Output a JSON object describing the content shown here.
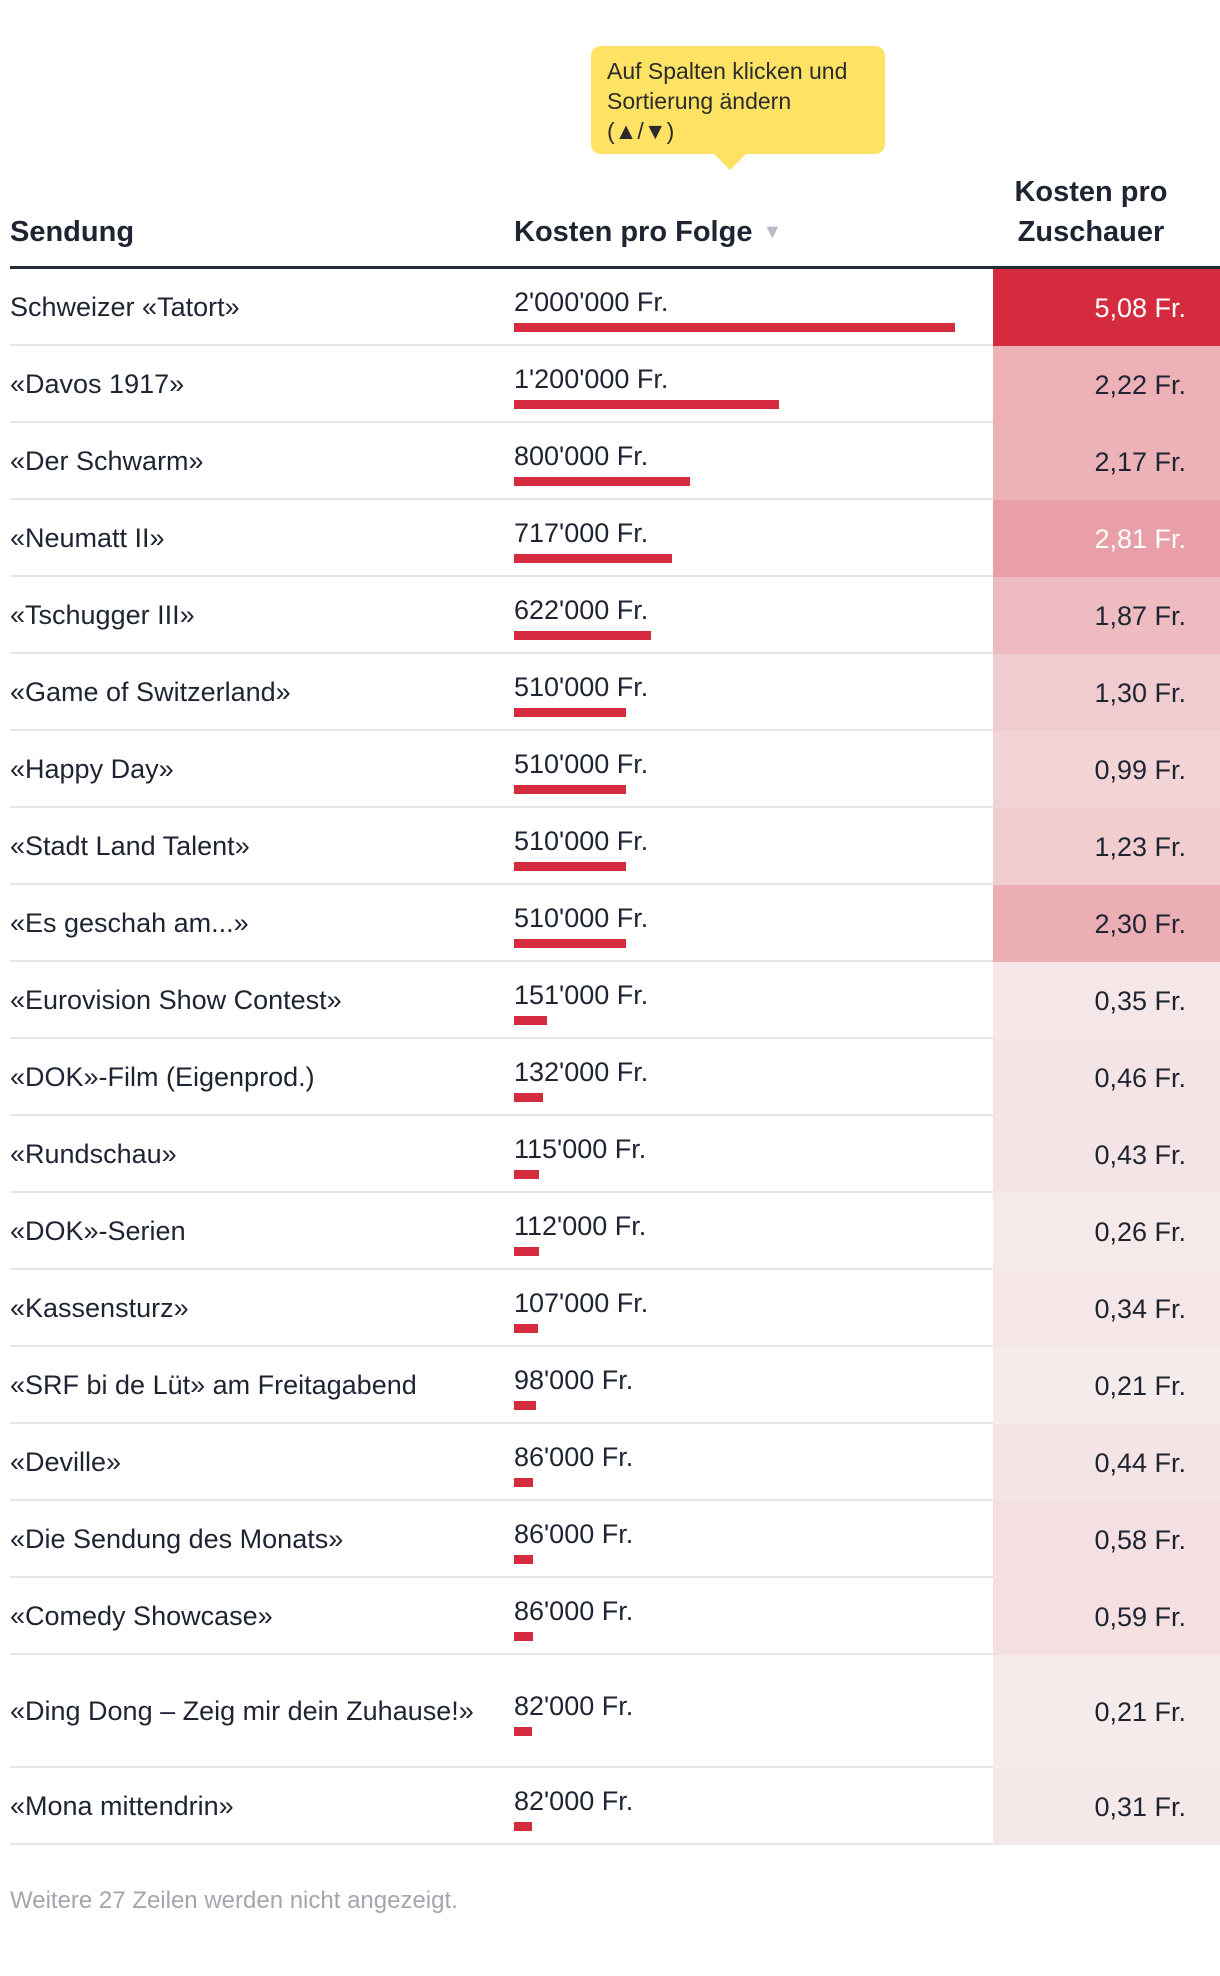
{
  "tooltip": {
    "line1": "Auf Spalten klicken und",
    "line2": "Sortierung ändern",
    "line3": "(▲/▼)"
  },
  "headers": {
    "col1": "Sendung",
    "col2": "Kosten pro Folge",
    "col2_sort_icon": "▼",
    "col3_line1": "Kosten pro",
    "col3_line2": "Zuschauer"
  },
  "footnote": "Weitere 27 Zeilen werden nicht angezeigt.",
  "colors": {
    "bar": "#d42c3e",
    "heat_high": "#d42c3e",
    "heat_low": "#f7f1f1",
    "text_dark": "#1f2433",
    "tooltip": "#fde264"
  },
  "chart_data": {
    "type": "table",
    "columns": [
      "Sendung",
      "Kosten pro Folge",
      "Kosten pro Zuschauer"
    ],
    "sorted_by": "Kosten pro Folge",
    "sort_direction": "descending",
    "rows": [
      {
        "name": "Schweizer «Tatort»",
        "cost": 2000000,
        "cost_label": "2'000'000 Fr.",
        "per_viewer": 5.08,
        "per_viewer_label": "5,08 Fr."
      },
      {
        "name": "«Davos 1917»",
        "cost": 1200000,
        "cost_label": "1'200'000 Fr.",
        "per_viewer": 2.22,
        "per_viewer_label": "2,22 Fr."
      },
      {
        "name": "«Der Schwarm»",
        "cost": 800000,
        "cost_label": "800'000 Fr.",
        "per_viewer": 2.17,
        "per_viewer_label": "2,17 Fr."
      },
      {
        "name": "«Neumatt II»",
        "cost": 717000,
        "cost_label": "717'000 Fr.",
        "per_viewer": 2.81,
        "per_viewer_label": "2,81 Fr."
      },
      {
        "name": "«Tschugger III»",
        "cost": 622000,
        "cost_label": "622'000 Fr.",
        "per_viewer": 1.87,
        "per_viewer_label": "1,87 Fr."
      },
      {
        "name": "«Game of Switzerland»",
        "cost": 510000,
        "cost_label": "510'000 Fr.",
        "per_viewer": 1.3,
        "per_viewer_label": "1,30 Fr."
      },
      {
        "name": "«Happy Day»",
        "cost": 510000,
        "cost_label": "510'000 Fr.",
        "per_viewer": 0.99,
        "per_viewer_label": "0,99 Fr."
      },
      {
        "name": "«Stadt Land Talent»",
        "cost": 510000,
        "cost_label": "510'000 Fr.",
        "per_viewer": 1.23,
        "per_viewer_label": "1,23 Fr."
      },
      {
        "name": "«Es geschah am...»",
        "cost": 510000,
        "cost_label": "510'000 Fr.",
        "per_viewer": 2.3,
        "per_viewer_label": "2,30 Fr."
      },
      {
        "name": "«Eurovision Show Contest»",
        "cost": 151000,
        "cost_label": "151'000 Fr.",
        "per_viewer": 0.35,
        "per_viewer_label": "0,35 Fr."
      },
      {
        "name": "«DOK»-Film (Eigenprod.)",
        "cost": 132000,
        "cost_label": "132'000 Fr.",
        "per_viewer": 0.46,
        "per_viewer_label": "0,46 Fr."
      },
      {
        "name": "«Rundschau»",
        "cost": 115000,
        "cost_label": "115'000 Fr.",
        "per_viewer": 0.43,
        "per_viewer_label": "0,43 Fr."
      },
      {
        "name": "«DOK»-Serien",
        "cost": 112000,
        "cost_label": "112'000 Fr.",
        "per_viewer": 0.26,
        "per_viewer_label": "0,26 Fr."
      },
      {
        "name": "«Kassensturz»",
        "cost": 107000,
        "cost_label": "107'000 Fr.",
        "per_viewer": 0.34,
        "per_viewer_label": "0,34 Fr."
      },
      {
        "name": "«SRF bi de Lüt» am Freitagabend",
        "cost": 98000,
        "cost_label": "98'000 Fr.",
        "per_viewer": 0.21,
        "per_viewer_label": "0,21 Fr."
      },
      {
        "name": "«Deville»",
        "cost": 86000,
        "cost_label": "86'000 Fr.",
        "per_viewer": 0.44,
        "per_viewer_label": "0,44 Fr."
      },
      {
        "name": "«Die Sendung des Monats»",
        "cost": 86000,
        "cost_label": "86'000 Fr.",
        "per_viewer": 0.58,
        "per_viewer_label": "0,58 Fr."
      },
      {
        "name": "«Comedy Showcase»",
        "cost": 86000,
        "cost_label": "86'000 Fr.",
        "per_viewer": 0.59,
        "per_viewer_label": "0,59 Fr."
      },
      {
        "name": "«Ding Dong – Zeig mir dein Zuhause!»",
        "cost": 82000,
        "cost_label": "82'000 Fr.",
        "per_viewer": 0.21,
        "per_viewer_label": "0,21 Fr."
      },
      {
        "name": "«Mona mittendrin»",
        "cost": 82000,
        "cost_label": "82'000 Fr.",
        "per_viewer": 0.31,
        "per_viewer_label": "0,31 Fr."
      }
    ]
  }
}
